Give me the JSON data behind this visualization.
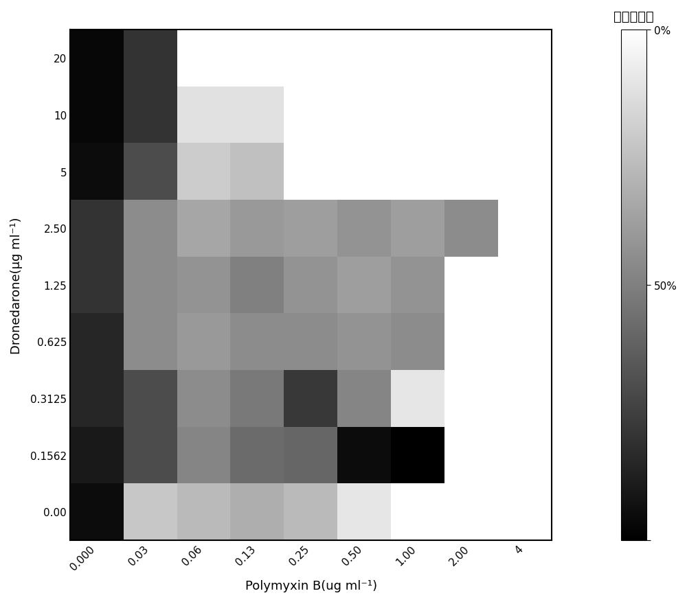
{
  "title_colorbar": "抑制百分比",
  "xlabel": "Polymyxin B(ug ml⁻¹)",
  "ylabel": "Dronedarone(μg ml⁻¹)",
  "x_labels": [
    "0.000",
    "0.03",
    "0.06",
    "0.13",
    "0.25",
    "0.50",
    "1.00",
    "2.00",
    "4"
  ],
  "y_labels": [
    "0.00",
    "0.1562",
    "0.3125",
    "0.625",
    "1.25",
    "2.50",
    "5",
    "10",
    "20"
  ],
  "vmin": 0,
  "vmax": 100,
  "heatmap_data": [
    [
      5,
      78,
      73,
      68,
      73,
      90,
      null,
      null,
      null
    ],
    [
      10,
      30,
      52,
      42,
      40,
      5,
      0,
      null,
      null
    ],
    [
      15,
      30,
      55,
      48,
      22,
      52,
      90,
      null,
      null
    ],
    [
      15,
      55,
      60,
      55,
      55,
      58,
      55,
      null,
      null
    ],
    [
      20,
      55,
      58,
      50,
      58,
      62,
      58,
      null,
      null
    ],
    [
      20,
      55,
      65,
      60,
      62,
      58,
      62,
      55,
      null
    ],
    [
      5,
      30,
      80,
      75,
      null,
      null,
      null,
      null,
      null
    ],
    [
      3,
      20,
      88,
      88,
      null,
      null,
      null,
      null,
      null
    ],
    [
      3,
      20,
      null,
      null,
      null,
      null,
      null,
      null,
      null
    ]
  ],
  "figsize": [
    10.0,
    8.78
  ],
  "dpi": 100
}
